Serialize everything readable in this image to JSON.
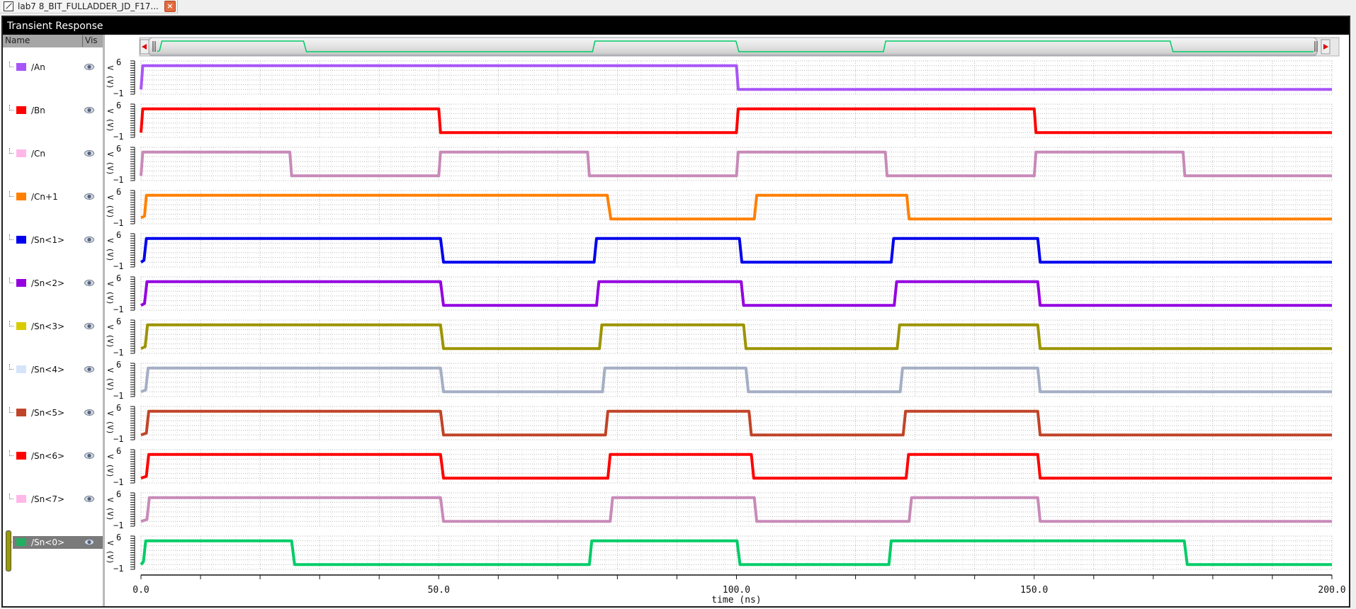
{
  "tab": {
    "label": "lab7 8_BIT_FULLADDER_JD_F17...",
    "close_icon": "close-icon"
  },
  "window": {
    "title": "Transient Response"
  },
  "legend": {
    "header_name": "Name",
    "header_vis": "Vis",
    "selected_index": 11
  },
  "scrollbar": {
    "left_arrow": "◀",
    "right_arrow": "▶"
  },
  "chart_data": {
    "type": "line",
    "title": "Transient Response",
    "xlabel": "time (ns)",
    "ylabel": "V (V)",
    "xlim": [
      0,
      200
    ],
    "x_ticks": [
      0.0,
      50.0,
      100.0,
      150.0,
      200.0
    ],
    "x_tick_labels": [
      "0.0",
      "50.0",
      "100.0",
      "150.0",
      "200.0"
    ],
    "ylim_per_trace": [
      -1,
      6
    ],
    "y_tick_labels": [
      "6",
      "-1"
    ],
    "grid": true,
    "high_level_v": 5,
    "low_level_v": 0,
    "series": [
      {
        "name": "/An",
        "color": "#a855f7",
        "swatch": "#a855f7",
        "edges": [
          [
            0,
            0
          ],
          [
            0.3,
            5
          ],
          [
            100,
            5
          ],
          [
            100.3,
            0
          ],
          [
            200,
            0
          ]
        ]
      },
      {
        "name": "/Bn",
        "color": "#ff0000",
        "swatch": "#ff0000",
        "edges": [
          [
            0,
            0
          ],
          [
            0.3,
            5
          ],
          [
            50,
            5
          ],
          [
            50.3,
            0
          ],
          [
            100,
            0
          ],
          [
            100.3,
            5
          ],
          [
            150,
            5
          ],
          [
            150.3,
            0
          ],
          [
            200,
            0
          ]
        ]
      },
      {
        "name": "/Cn",
        "color": "#c88ab8",
        "swatch": "#ffb8e8",
        "edges": [
          [
            0,
            0
          ],
          [
            0.3,
            5
          ],
          [
            25,
            5
          ],
          [
            25.3,
            0
          ],
          [
            50,
            0
          ],
          [
            50.3,
            5
          ],
          [
            75,
            5
          ],
          [
            75.3,
            0
          ],
          [
            100,
            0
          ],
          [
            100.3,
            5
          ],
          [
            125,
            5
          ],
          [
            125.3,
            0
          ],
          [
            150,
            0
          ],
          [
            150.3,
            5
          ],
          [
            175,
            5
          ],
          [
            175.3,
            0
          ],
          [
            200,
            0
          ]
        ]
      },
      {
        "name": "/Cn+1",
        "color": "#ff8000",
        "swatch": "#ff8000",
        "edges": [
          [
            0,
            0.3
          ],
          [
            0.6,
            0.6
          ],
          [
            0.9,
            5
          ],
          [
            78.3,
            5
          ],
          [
            78.9,
            0
          ],
          [
            103,
            0
          ],
          [
            103.4,
            5
          ],
          [
            128.6,
            5
          ],
          [
            129,
            0
          ],
          [
            200,
            0
          ]
        ]
      },
      {
        "name": "/Sn<1>",
        "color": "#0000ee",
        "swatch": "#0000ee",
        "edges": [
          [
            0,
            0
          ],
          [
            0.5,
            0.4
          ],
          [
            0.9,
            5
          ],
          [
            50.3,
            5
          ],
          [
            50.8,
            0
          ],
          [
            76.1,
            0
          ],
          [
            76.5,
            5
          ],
          [
            100.5,
            5
          ],
          [
            100.9,
            0
          ],
          [
            126,
            0
          ],
          [
            126.4,
            5
          ],
          [
            150.6,
            5
          ],
          [
            151,
            0
          ],
          [
            200,
            0
          ]
        ]
      },
      {
        "name": "/Sn<2>",
        "color": "#9400e0",
        "swatch": "#9400e0",
        "edges": [
          [
            0,
            0
          ],
          [
            0.6,
            0.4
          ],
          [
            1.0,
            5
          ],
          [
            50.3,
            5
          ],
          [
            50.8,
            0
          ],
          [
            76.5,
            0
          ],
          [
            76.9,
            5
          ],
          [
            100.8,
            5
          ],
          [
            101.2,
            0
          ],
          [
            126.5,
            0
          ],
          [
            126.9,
            5
          ],
          [
            150.6,
            5
          ],
          [
            151,
            0
          ],
          [
            200,
            0
          ]
        ]
      },
      {
        "name": "/Sn<3>",
        "color": "#9c9400",
        "swatch": "#d8cc00",
        "edges": [
          [
            0,
            0
          ],
          [
            0.7,
            0.4
          ],
          [
            1.1,
            5
          ],
          [
            50.3,
            5
          ],
          [
            50.8,
            0
          ],
          [
            77,
            0
          ],
          [
            77.4,
            5
          ],
          [
            101.2,
            5
          ],
          [
            101.6,
            0
          ],
          [
            127,
            0
          ],
          [
            127.4,
            5
          ],
          [
            150.6,
            5
          ],
          [
            151,
            0
          ],
          [
            200,
            0
          ]
        ]
      },
      {
        "name": "/Sn<4>",
        "color": "#a4aec4",
        "swatch": "#d6e4fa",
        "edges": [
          [
            0,
            0
          ],
          [
            0.8,
            0.4
          ],
          [
            1.2,
            5
          ],
          [
            50.3,
            5
          ],
          [
            50.8,
            0
          ],
          [
            77.5,
            0
          ],
          [
            77.9,
            5
          ],
          [
            101.6,
            5
          ],
          [
            102,
            0
          ],
          [
            127.5,
            0
          ],
          [
            127.9,
            5
          ],
          [
            150.6,
            5
          ],
          [
            151,
            0
          ],
          [
            200,
            0
          ]
        ]
      },
      {
        "name": "/Sn<5>",
        "color": "#c04428",
        "swatch": "#c04428",
        "edges": [
          [
            0,
            0
          ],
          [
            0.9,
            0.4
          ],
          [
            1.3,
            5
          ],
          [
            50.3,
            5
          ],
          [
            50.8,
            0
          ],
          [
            78,
            0
          ],
          [
            78.4,
            5
          ],
          [
            102.1,
            5
          ],
          [
            102.5,
            0
          ],
          [
            128,
            0
          ],
          [
            128.4,
            5
          ],
          [
            150.6,
            5
          ],
          [
            151,
            0
          ],
          [
            200,
            0
          ]
        ]
      },
      {
        "name": "/Sn<6>",
        "color": "#ff0000",
        "swatch": "#ff0000",
        "edges": [
          [
            0,
            0
          ],
          [
            0.9,
            0.4
          ],
          [
            1.3,
            5
          ],
          [
            50.3,
            5
          ],
          [
            50.8,
            0
          ],
          [
            78.4,
            0
          ],
          [
            78.8,
            5
          ],
          [
            102.5,
            5
          ],
          [
            102.9,
            0
          ],
          [
            128.5,
            0
          ],
          [
            128.9,
            5
          ],
          [
            150.6,
            5
          ],
          [
            151,
            0
          ],
          [
            200,
            0
          ]
        ]
      },
      {
        "name": "/Sn<7>",
        "color": "#c88ab8",
        "swatch": "#ffb8e8",
        "edges": [
          [
            0,
            0
          ],
          [
            1.0,
            0.4
          ],
          [
            1.4,
            5
          ],
          [
            50.3,
            5
          ],
          [
            50.8,
            0
          ],
          [
            78.8,
            0
          ],
          [
            79.2,
            5
          ],
          [
            103,
            5
          ],
          [
            103.4,
            0
          ],
          [
            129,
            0
          ],
          [
            129.4,
            5
          ],
          [
            150.6,
            5
          ],
          [
            151,
            0
          ],
          [
            200,
            0
          ]
        ]
      },
      {
        "name": "/Sn<0>",
        "color": "#00cc66",
        "swatch": "#22b060",
        "edges": [
          [
            0,
            0
          ],
          [
            0.4,
            0.6
          ],
          [
            0.8,
            5
          ],
          [
            25.3,
            5
          ],
          [
            25.8,
            0
          ],
          [
            75.3,
            0
          ],
          [
            75.7,
            5
          ],
          [
            100.1,
            5
          ],
          [
            100.6,
            0
          ],
          [
            125.6,
            0
          ],
          [
            126,
            5
          ],
          [
            175.2,
            5
          ],
          [
            175.7,
            0
          ],
          [
            200,
            0
          ]
        ]
      }
    ]
  },
  "overview": {
    "series_index": 11
  }
}
